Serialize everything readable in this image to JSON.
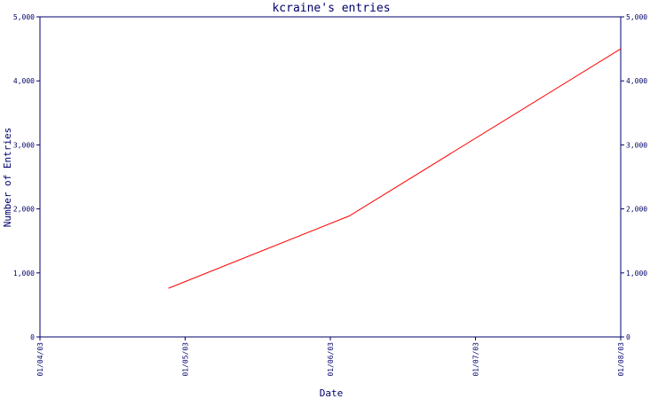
{
  "chart_data": {
    "type": "line",
    "title": "kcraine's entries",
    "xlabel": "Date",
    "ylabel": "Number of Entries",
    "x_ticks": [
      "01/04/03",
      "01/05/03",
      "01/06/03",
      "01/07/03",
      "01/08/03"
    ],
    "y_ticks": [
      "0",
      "1,000",
      "2,000",
      "3,000",
      "4,000",
      "5,000"
    ],
    "y_ticks_right": [
      "0",
      "1,000",
      "2,000",
      "3,000",
      "4,000",
      "5,000"
    ],
    "ylim": [
      0,
      5000
    ],
    "xlim": [
      "2003-04-01",
      "2003-08-01"
    ],
    "grid": false,
    "series": [
      {
        "color": "#ff0000",
        "points": [
          {
            "x": "2003-04-28",
            "y": 760
          },
          {
            "x": "2003-06-05",
            "y": 1890
          },
          {
            "x": "2003-08-01",
            "y": 4500
          }
        ]
      }
    ],
    "colors": {
      "axis": "#00006b",
      "line": "#ff0000",
      "background": "#ffffff"
    }
  }
}
